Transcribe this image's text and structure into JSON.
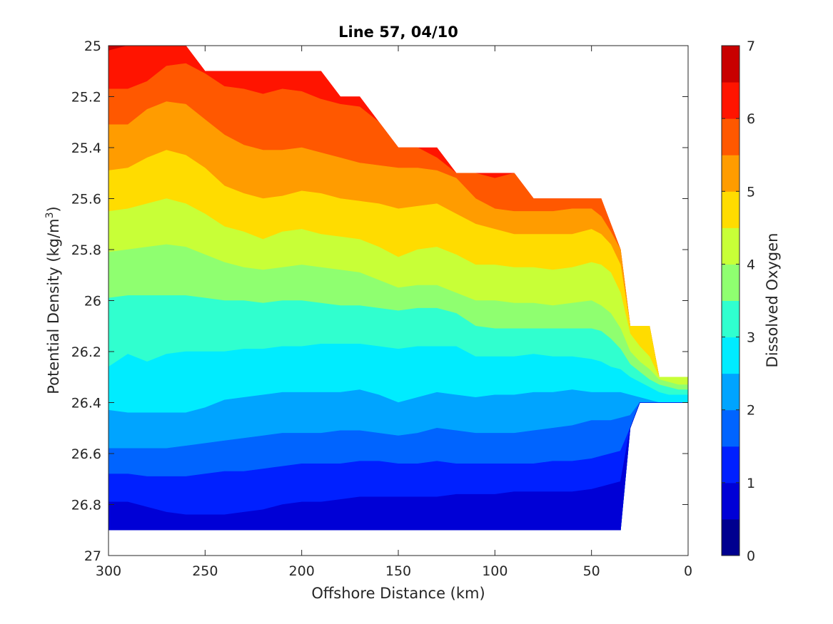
{
  "chart_data": {
    "type": "contour",
    "title": "Line 57, 04/10",
    "xlabel": "Offshore Distance (km)",
    "ylabel": "Potential Density (kg/m",
    "ylabel_sup": "3",
    "ylabel_end": ")",
    "colorbar_label": "Dissolved Oxygen",
    "xlim": [
      300,
      0
    ],
    "x_reversed": true,
    "ylim": [
      25,
      27
    ],
    "y_reversed": true,
    "x_ticks": [
      300,
      250,
      200,
      150,
      100,
      50,
      0
    ],
    "x_tick_labels": [
      "300",
      "250",
      "200",
      "150",
      "100",
      "50",
      "0"
    ],
    "y_ticks": [
      25,
      25.2,
      25.4,
      25.6,
      25.8,
      26,
      26.2,
      26.4,
      26.6,
      26.8,
      27
    ],
    "y_tick_labels": [
      "25",
      "25.2",
      "25.4",
      "25.6",
      "25.8",
      "26",
      "26.2",
      "26.4",
      "26.6",
      "26.8",
      "27"
    ],
    "colorbar_ticks": [
      0,
      1,
      2,
      3,
      4,
      5,
      6,
      7
    ],
    "colorbar_tick_labels": [
      "0",
      "1",
      "2",
      "3",
      "4",
      "5",
      "6",
      "7"
    ],
    "contour_levels": [
      0,
      0.5,
      1,
      1.5,
      2,
      2.5,
      3,
      3.5,
      4,
      4.5,
      5,
      5.5,
      6,
      6.5,
      7
    ],
    "level_colors": [
      "#00008f",
      "#0000d6",
      "#0020ff",
      "#0064ff",
      "#00a4ff",
      "#00ecff",
      "#30ffcf",
      "#8fff70",
      "#c8ff37",
      "#ffdc00",
      "#ff9c00",
      "#ff5800",
      "#ff1400",
      "#c80000"
    ],
    "data_x": [
      300,
      290,
      280,
      270,
      260,
      250,
      240,
      230,
      220,
      210,
      200,
      190,
      180,
      170,
      160,
      150,
      140,
      130,
      120,
      110,
      100,
      90,
      80,
      70,
      60,
      50,
      45,
      40,
      35,
      30,
      25,
      20,
      15,
      10,
      5,
      0
    ],
    "coverage": {
      "top": [
        25.0,
        25.0,
        25.0,
        25.0,
        25.0,
        25.1,
        25.1,
        25.1,
        25.1,
        25.1,
        25.1,
        25.1,
        25.2,
        25.2,
        25.3,
        25.4,
        25.4,
        25.4,
        25.5,
        25.5,
        25.5,
        25.5,
        25.6,
        25.6,
        25.6,
        25.6,
        25.6,
        25.7,
        25.8,
        26.1,
        26.1,
        26.1,
        26.3,
        26.3,
        26.3,
        26.3
      ],
      "bottom": [
        26.9,
        26.9,
        26.9,
        26.9,
        26.9,
        26.9,
        26.9,
        26.9,
        26.9,
        26.9,
        26.9,
        26.9,
        26.9,
        26.9,
        26.9,
        26.9,
        26.9,
        26.9,
        26.9,
        26.9,
        26.9,
        26.9,
        26.9,
        26.9,
        26.9,
        26.9,
        26.9,
        26.9,
        26.9,
        26.5,
        26.4,
        26.4,
        26.4,
        26.4,
        26.4,
        26.4
      ]
    },
    "contours": [
      {
        "level": 6.5,
        "y": [
          25.02,
          25.0,
          25.0,
          25.0,
          25.0,
          25.1,
          25.1,
          25.1,
          25.1,
          25.1,
          25.1,
          25.1,
          25.2,
          25.2,
          25.3,
          25.4,
          25.4,
          25.4,
          25.5,
          25.5,
          25.5,
          25.5,
          25.6,
          25.6,
          25.6,
          25.6,
          25.6,
          25.7,
          25.8,
          26.1,
          26.1,
          26.1,
          26.3,
          26.3,
          26.3,
          26.3
        ]
      },
      {
        "level": 6.0,
        "y": [
          25.17,
          25.17,
          25.14,
          25.08,
          25.07,
          25.11,
          25.16,
          25.17,
          25.19,
          25.17,
          25.18,
          25.21,
          25.23,
          25.24,
          25.3,
          25.4,
          25.4,
          25.44,
          25.5,
          25.5,
          25.52,
          25.5,
          25.6,
          25.6,
          25.6,
          25.6,
          25.6,
          25.7,
          25.8,
          26.1,
          26.1,
          26.1,
          26.3,
          26.3,
          26.3,
          26.3
        ]
      },
      {
        "level": 5.5,
        "y": [
          25.31,
          25.31,
          25.25,
          25.22,
          25.23,
          25.29,
          25.35,
          25.39,
          25.41,
          25.41,
          25.4,
          25.42,
          25.44,
          25.46,
          25.47,
          25.48,
          25.48,
          25.49,
          25.52,
          25.6,
          25.64,
          25.65,
          25.65,
          25.65,
          25.64,
          25.64,
          25.67,
          25.73,
          25.8,
          26.1,
          26.1,
          26.1,
          26.3,
          26.3,
          26.3,
          26.3
        ]
      },
      {
        "level": 5.0,
        "y": [
          25.49,
          25.48,
          25.44,
          25.41,
          25.43,
          25.48,
          25.55,
          25.58,
          25.6,
          25.59,
          25.57,
          25.58,
          25.6,
          25.61,
          25.62,
          25.64,
          25.63,
          25.62,
          25.66,
          25.7,
          25.72,
          25.74,
          25.74,
          25.74,
          25.74,
          25.72,
          25.74,
          25.78,
          25.86,
          26.1,
          26.1,
          26.1,
          26.3,
          26.3,
          26.3,
          26.3
        ]
      },
      {
        "level": 4.5,
        "y": [
          25.65,
          25.64,
          25.62,
          25.6,
          25.62,
          25.66,
          25.71,
          25.73,
          25.76,
          25.73,
          25.72,
          25.74,
          25.75,
          25.76,
          25.79,
          25.83,
          25.8,
          25.79,
          25.82,
          25.86,
          25.86,
          25.87,
          25.87,
          25.88,
          25.87,
          25.85,
          25.86,
          25.89,
          25.97,
          26.13,
          26.18,
          26.22,
          26.3,
          26.3,
          26.3,
          26.3
        ]
      },
      {
        "level": 4.0,
        "y": [
          25.81,
          25.8,
          25.79,
          25.78,
          25.79,
          25.82,
          25.85,
          25.87,
          25.88,
          25.87,
          25.86,
          25.87,
          25.88,
          25.89,
          25.92,
          25.95,
          25.94,
          25.94,
          25.97,
          26.0,
          26.0,
          26.01,
          26.01,
          26.02,
          26.01,
          26.0,
          26.02,
          26.05,
          26.11,
          26.2,
          26.24,
          26.27,
          26.31,
          26.32,
          26.33,
          26.33
        ]
      },
      {
        "level": 3.5,
        "y": [
          25.99,
          25.98,
          25.98,
          25.98,
          25.98,
          25.99,
          26.0,
          26.0,
          26.01,
          26.0,
          26.0,
          26.01,
          26.02,
          26.02,
          26.03,
          26.04,
          26.03,
          26.03,
          26.05,
          26.1,
          26.11,
          26.11,
          26.11,
          26.11,
          26.11,
          26.11,
          26.12,
          26.15,
          26.19,
          26.25,
          26.28,
          26.31,
          26.33,
          26.34,
          26.35,
          26.35
        ]
      },
      {
        "level": 3.0,
        "y": [
          26.26,
          26.21,
          26.24,
          26.21,
          26.2,
          26.2,
          26.2,
          26.19,
          26.19,
          26.18,
          26.18,
          26.17,
          26.17,
          26.17,
          26.18,
          26.19,
          26.18,
          26.18,
          26.18,
          26.22,
          26.22,
          26.22,
          26.21,
          26.22,
          26.22,
          26.23,
          26.24,
          26.26,
          26.27,
          26.3,
          26.32,
          26.34,
          26.36,
          26.37,
          26.37,
          26.37
        ]
      },
      {
        "level": 2.5,
        "y": [
          26.43,
          26.44,
          26.44,
          26.44,
          26.44,
          26.42,
          26.39,
          26.38,
          26.37,
          26.36,
          26.36,
          26.36,
          26.36,
          26.35,
          26.37,
          26.4,
          26.38,
          26.36,
          26.37,
          26.38,
          26.37,
          26.37,
          26.36,
          26.36,
          26.35,
          26.36,
          26.36,
          26.36,
          26.36,
          26.37,
          26.38,
          26.39,
          26.4,
          26.4,
          26.4,
          26.4
        ]
      },
      {
        "level": 2.0,
        "y": [
          26.58,
          26.58,
          26.58,
          26.58,
          26.57,
          26.56,
          26.55,
          26.54,
          26.53,
          26.52,
          26.52,
          26.52,
          26.51,
          26.51,
          26.52,
          26.53,
          26.52,
          26.5,
          26.51,
          26.52,
          26.52,
          26.52,
          26.51,
          26.5,
          26.49,
          26.47,
          26.47,
          26.47,
          26.46,
          26.45,
          26.42,
          26.42,
          26.42,
          26.42,
          26.42,
          26.42
        ]
      },
      {
        "level": 1.5,
        "y": [
          26.68,
          26.68,
          26.69,
          26.69,
          26.69,
          26.68,
          26.67,
          26.67,
          26.66,
          26.65,
          26.64,
          26.64,
          26.64,
          26.63,
          26.63,
          26.64,
          26.64,
          26.63,
          26.64,
          26.64,
          26.64,
          26.64,
          26.64,
          26.63,
          26.63,
          26.62,
          26.61,
          26.6,
          26.59,
          26.59,
          26.59,
          26.59,
          26.59,
          26.59,
          26.59,
          26.59
        ]
      },
      {
        "level": 1.0,
        "y": [
          26.79,
          26.79,
          26.81,
          26.83,
          26.84,
          26.84,
          26.84,
          26.83,
          26.82,
          26.8,
          26.79,
          26.79,
          26.78,
          26.77,
          26.77,
          26.77,
          26.77,
          26.77,
          26.76,
          26.76,
          26.76,
          26.75,
          26.75,
          26.75,
          26.75,
          26.74,
          26.73,
          26.72,
          26.71,
          26.7,
          26.7,
          26.7,
          26.7,
          26.7,
          26.7,
          26.7
        ]
      }
    ]
  }
}
